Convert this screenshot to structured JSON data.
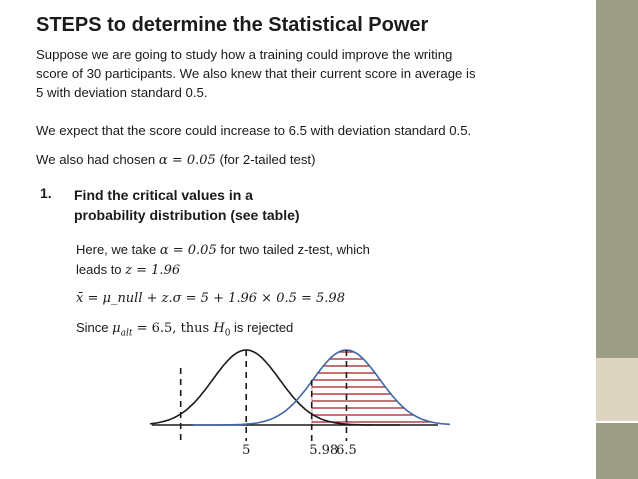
{
  "title": "STEPS to determine the Statistical Power",
  "intro": {
    "line1": "Suppose we are going to study how a training could improve the writing",
    "line2": "score of 30 participants. We also knew that their current score in average is",
    "line3": "5 with deviation standard 0.5."
  },
  "expect": "We expect that the score could increase to 6.5 with deviation standard 0.5.",
  "alpha_line": {
    "prefix": "We also had chosen ",
    "math": "α = 0.05",
    "suffix": " (for 2-tailed test)"
  },
  "step1": {
    "number": "1.",
    "line1": "Find the critical values in a",
    "line2": "probability distribution (see table)"
  },
  "explain": {
    "part1": "Here, we take ",
    "math1": "α = 0.05",
    "part2": " for two tailed z-test, which",
    "part3": "leads to ",
    "math2": "z = 1.96"
  },
  "equation": "x̄ = μ_null + z.σ = 5 + 1.96 × 0.5 = 5.98",
  "since": {
    "part1": "Since ",
    "mu": "μ",
    "mu_sub": "alt",
    "part2": " = 6.5, thus ",
    "h": "H",
    "h_sub": "0",
    "part3": " is rejected"
  },
  "chart_labels": {
    "label_5": "5",
    "label_598": "5.98",
    "label_65": "6.5"
  },
  "colors": {
    "null_curve": "#1a1a1a",
    "alt_curve": "#3f66a8",
    "rejection_hatch": "#a41e22",
    "sidebar": "#9b9d86",
    "sidebar_block": "#dcd6c0"
  }
}
